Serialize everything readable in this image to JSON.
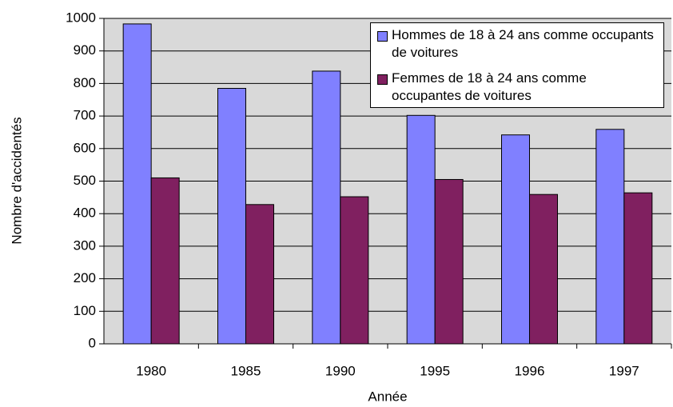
{
  "chart_data": {
    "type": "bar",
    "xlabel": "Année",
    "ylabel": "Nombre d'accidentés",
    "categories": [
      "1980",
      "1985",
      "1990",
      "1995",
      "1996",
      "1997"
    ],
    "series": [
      {
        "name": "Hommes de 18 à 24 ans comme occupants de voitures",
        "color": "#8080ff",
        "values": [
          983,
          785,
          838,
          702,
          642,
          659
        ]
      },
      {
        "name": "Femmes de 18 à 24 ans comme occupantes de voitures",
        "color": "#802060",
        "values": [
          510,
          428,
          452,
          505,
          459,
          464
        ]
      }
    ],
    "ylim": [
      0,
      1000
    ],
    "yticks": [
      0,
      100,
      200,
      300,
      400,
      500,
      600,
      700,
      800,
      900,
      1000
    ],
    "grid": true,
    "legend": "upper right"
  }
}
